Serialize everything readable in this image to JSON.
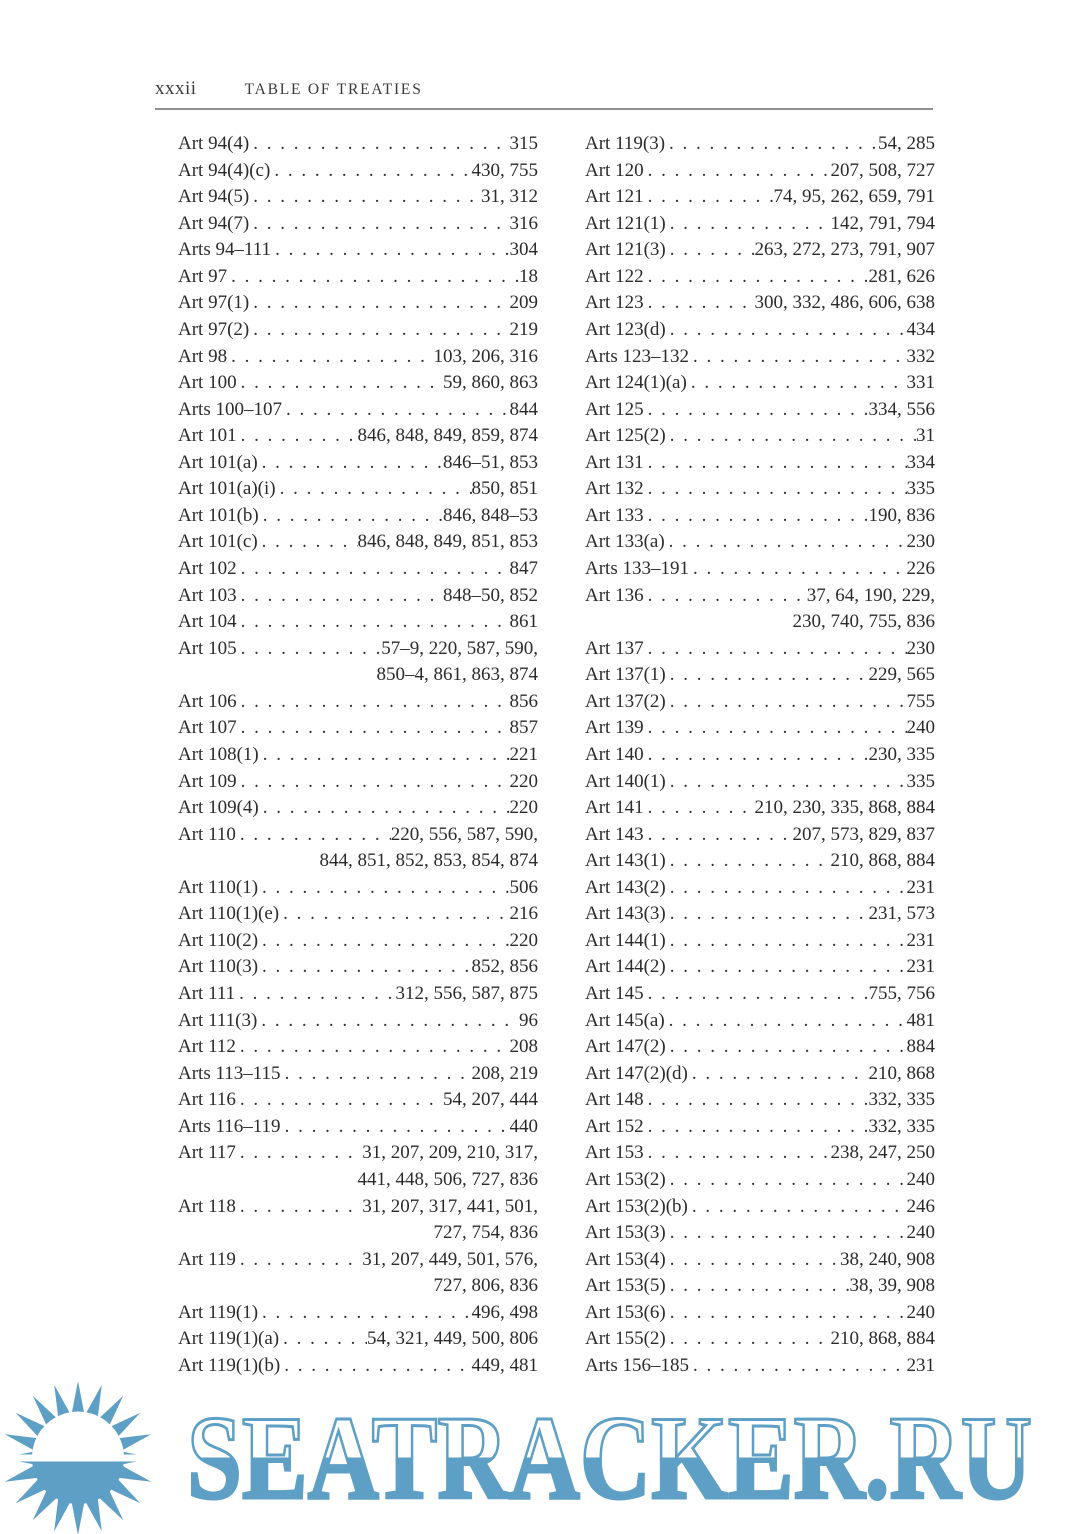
{
  "page": {
    "folio": "xxxii",
    "header": "TABLE OF TREATIES"
  },
  "index": {
    "left_column": [
      {
        "label": "Art 94(4)",
        "pages": "315"
      },
      {
        "label": "Art 94(4)(c)",
        "pages": "430, 755"
      },
      {
        "label": "Art 94(5)",
        "pages": "31, 312"
      },
      {
        "label": "Art 94(7)",
        "pages": "316"
      },
      {
        "label": "Arts 94–111",
        "pages": "304"
      },
      {
        "label": "Art 97",
        "pages": "18"
      },
      {
        "label": "Art 97(1)",
        "pages": "209"
      },
      {
        "label": "Art 97(2)",
        "pages": "219"
      },
      {
        "label": "Art 98",
        "pages": "103, 206, 316"
      },
      {
        "label": "Art 100",
        "pages": "59, 860, 863"
      },
      {
        "label": "Arts 100–107",
        "pages": "844"
      },
      {
        "label": "Art 101",
        "pages": "846, 848, 849, 859, 874"
      },
      {
        "label": "Art 101(a)",
        "pages": "846–51, 853"
      },
      {
        "label": "Art 101(a)(i)",
        "pages": "850, 851"
      },
      {
        "label": "Art 101(b)",
        "pages": "846, 848–53"
      },
      {
        "label": "Art 101(c)",
        "pages": "846, 848, 849, 851, 853"
      },
      {
        "label": "Art 102",
        "pages": "847"
      },
      {
        "label": "Art 103",
        "pages": "848–50, 852"
      },
      {
        "label": "Art 104",
        "pages": "861"
      },
      {
        "label": "Art 105",
        "pages": "57–9, 220, 587, 590,",
        "cont": "850–4, 861, 863, 874"
      },
      {
        "label": "Art 106",
        "pages": "856"
      },
      {
        "label": "Art 107",
        "pages": "857"
      },
      {
        "label": "Art 108(1)",
        "pages": "221"
      },
      {
        "label": "Art 109",
        "pages": "220"
      },
      {
        "label": "Art 109(4)",
        "pages": "220"
      },
      {
        "label": "Art 110",
        "pages": "220, 556, 587, 590,",
        "cont": "844, 851, 852, 853, 854, 874"
      },
      {
        "label": "Art 110(1)",
        "pages": "506"
      },
      {
        "label": "Art 110(1)(e)",
        "pages": "216"
      },
      {
        "label": "Art 110(2)",
        "pages": "220"
      },
      {
        "label": "Art 110(3)",
        "pages": "852, 856"
      },
      {
        "label": "Art 111",
        "pages": "312, 556, 587, 875"
      },
      {
        "label": "Art 111(3)",
        "pages": "96"
      },
      {
        "label": "Art 112",
        "pages": "208"
      },
      {
        "label": "Arts 113–115",
        "pages": "208, 219"
      },
      {
        "label": "Art 116",
        "pages": "54, 207, 444"
      },
      {
        "label": "Arts 116–119",
        "pages": "440"
      },
      {
        "label": "Art 117",
        "pages": "31, 207, 209, 210, 317,",
        "cont": "441, 448, 506, 727, 836"
      },
      {
        "label": "Art 118",
        "pages": "31, 207, 317, 441, 501,",
        "cont": "727, 754, 836"
      },
      {
        "label": "Art 119",
        "pages": "31, 207, 449, 501, 576,",
        "cont": "727, 806, 836"
      },
      {
        "label": "Art 119(1)",
        "pages": "496, 498"
      },
      {
        "label": "Art 119(1)(a)",
        "pages": "54, 321, 449, 500, 806"
      },
      {
        "label": "Art 119(1)(b)",
        "pages": "449, 481"
      }
    ],
    "right_column": [
      {
        "label": "Art 119(3)",
        "pages": "54, 285"
      },
      {
        "label": "Art 120",
        "pages": "207, 508, 727"
      },
      {
        "label": "Art 121",
        "pages": "74, 95, 262, 659, 791"
      },
      {
        "label": "Art 121(1)",
        "pages": "142, 791, 794"
      },
      {
        "label": "Art 121(3)",
        "pages": "263, 272, 273, 791, 907"
      },
      {
        "label": "Art 122",
        "pages": "281, 626"
      },
      {
        "label": "Art 123",
        "pages": "300, 332, 486, 606, 638"
      },
      {
        "label": "Art 123(d)",
        "pages": "434"
      },
      {
        "label": "Arts 123–132",
        "pages": "332"
      },
      {
        "label": "Art 124(1)(a)",
        "pages": "331"
      },
      {
        "label": "Art 125",
        "pages": "334, 556"
      },
      {
        "label": "Art 125(2)",
        "pages": "31"
      },
      {
        "label": "Art 131",
        "pages": "334"
      },
      {
        "label": "Art 132",
        "pages": "335"
      },
      {
        "label": "Art 133",
        "pages": "190, 836"
      },
      {
        "label": "Art 133(a)",
        "pages": "230"
      },
      {
        "label": "Arts 133–191",
        "pages": "226"
      },
      {
        "label": "Art 136",
        "pages": "37, 64, 190, 229,",
        "cont": "230, 740, 755, 836"
      },
      {
        "label": "Art 137",
        "pages": "230"
      },
      {
        "label": "Art 137(1)",
        "pages": "229, 565"
      },
      {
        "label": "Art 137(2)",
        "pages": "755"
      },
      {
        "label": "Art 139",
        "pages": "240"
      },
      {
        "label": "Art 140",
        "pages": "230, 335"
      },
      {
        "label": "Art 140(1)",
        "pages": "335"
      },
      {
        "label": "Art 141",
        "pages": "210, 230, 335, 868, 884"
      },
      {
        "label": "Art 143",
        "pages": "207, 573, 829, 837"
      },
      {
        "label": "Art 143(1)",
        "pages": "210, 868, 884"
      },
      {
        "label": "Art 143(2)",
        "pages": "231"
      },
      {
        "label": "Art 143(3)",
        "pages": "231, 573"
      },
      {
        "label": "Art 144(1)",
        "pages": "231"
      },
      {
        "label": "Art 144(2)",
        "pages": "231"
      },
      {
        "label": "Art 145",
        "pages": "755, 756"
      },
      {
        "label": "Art 145(a)",
        "pages": "481"
      },
      {
        "label": "Art 147(2)",
        "pages": "884"
      },
      {
        "label": "Art 147(2)(d)",
        "pages": "210, 868"
      },
      {
        "label": "Art 148",
        "pages": "332, 335"
      },
      {
        "label": "Art 152",
        "pages": "332, 335"
      },
      {
        "label": "Art 153",
        "pages": "238, 247, 250"
      },
      {
        "label": "Art 153(2)",
        "pages": "240"
      },
      {
        "label": "Art 153(2)(b)",
        "pages": "246"
      },
      {
        "label": "Art 153(3)",
        "pages": "240"
      },
      {
        "label": "Art 153(4)",
        "pages": "38, 240, 908"
      },
      {
        "label": "Art 153(5)",
        "pages": "38, 39, 908"
      },
      {
        "label": "Art 153(6)",
        "pages": "240"
      },
      {
        "label": "Art 155(2)",
        "pages": "210, 868, 884"
      },
      {
        "label": "Arts 156–185",
        "pages": "231"
      }
    ]
  },
  "watermark": {
    "text": "SEATRACKER.RU",
    "color": "#5e9fc5",
    "icon": "sun-icon"
  }
}
